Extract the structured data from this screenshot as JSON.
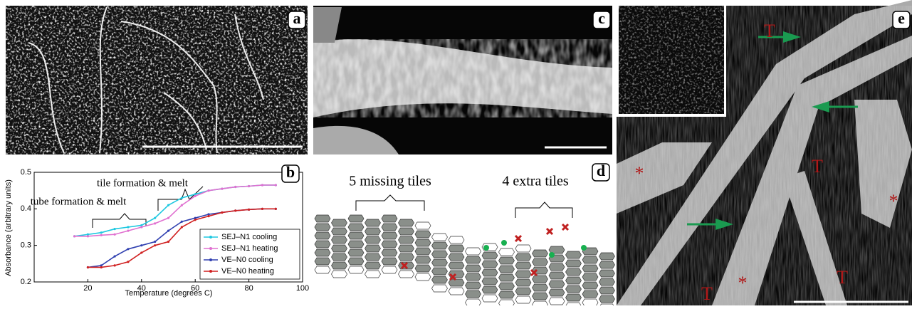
{
  "panel_labels": [
    "a",
    "b",
    "c",
    "d",
    "e"
  ],
  "chart_data": {
    "type": "line",
    "x_label": "Temperature (degrees C)",
    "y_label": "Absorbance (arbitrary units)",
    "xlim": [
      0,
      100
    ],
    "xticks": [
      20,
      40,
      60,
      80,
      100
    ],
    "ylim": [
      0.2,
      0.5
    ],
    "yticks": [
      0.2,
      0.3,
      0.4,
      0.5
    ],
    "legend": "lower right",
    "annotations": [
      "tile formation & melt",
      "tube formation & melt"
    ],
    "series": [
      {
        "name": "SEJ–N1 cooling",
        "color": "#1ec8e0",
        "x": [
          15,
          20,
          25,
          30,
          35,
          40,
          45,
          50,
          55,
          60,
          65,
          70,
          75,
          80,
          85,
          90
        ],
        "values": [
          0.325,
          0.33,
          0.335,
          0.345,
          0.35,
          0.355,
          0.375,
          0.41,
          0.43,
          0.44,
          0.45,
          0.455,
          0.46,
          0.462,
          0.465,
          0.465
        ]
      },
      {
        "name": "SEJ–N1 heating",
        "color": "#e070d0",
        "x": [
          15,
          20,
          25,
          30,
          35,
          40,
          45,
          50,
          55,
          60,
          65,
          70,
          75,
          80,
          85,
          90
        ],
        "values": [
          0.325,
          0.325,
          0.328,
          0.33,
          0.34,
          0.35,
          0.36,
          0.375,
          0.41,
          0.435,
          0.45,
          0.455,
          0.46,
          0.462,
          0.465,
          0.465
        ]
      },
      {
        "name": "VE–N0 cooling",
        "color": "#3040b0",
        "x": [
          20,
          25,
          30,
          35,
          40,
          45,
          50,
          55,
          60,
          65,
          70,
          75,
          80,
          85,
          90
        ],
        "values": [
          0.24,
          0.245,
          0.27,
          0.29,
          0.3,
          0.31,
          0.34,
          0.365,
          0.375,
          0.385,
          0.39,
          0.395,
          0.398,
          0.4,
          0.4
        ]
      },
      {
        "name": "VE–N0 heating",
        "color": "#d02020",
        "x": [
          20,
          25,
          30,
          35,
          40,
          45,
          50,
          55,
          60,
          65,
          70,
          75,
          80,
          85,
          90
        ],
        "values": [
          0.24,
          0.24,
          0.245,
          0.255,
          0.28,
          0.3,
          0.31,
          0.35,
          0.37,
          0.38,
          0.39,
          0.395,
          0.398,
          0.4,
          0.4
        ]
      }
    ]
  },
  "diagram_labels": [
    "5 missing tiles",
    "4 extra tiles"
  ],
  "micrograph_labels": [
    "T",
    "T",
    "T",
    "T",
    "*",
    "*",
    "*"
  ]
}
